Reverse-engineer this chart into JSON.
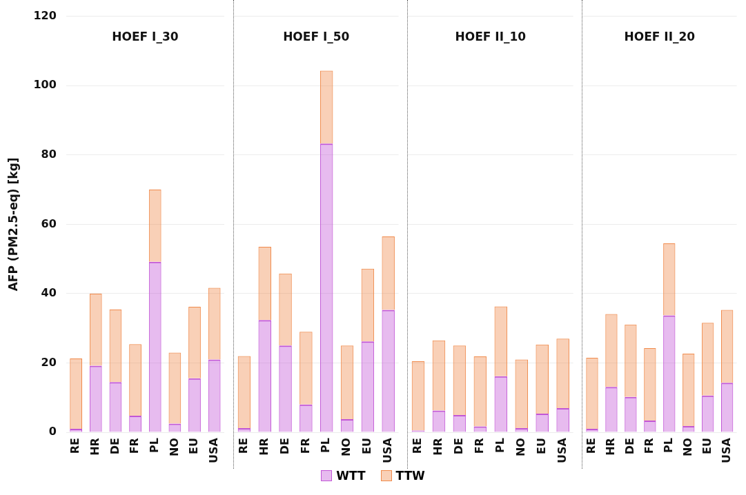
{
  "chart_data": [
    {
      "type": "bar",
      "title": "HOEF I_30",
      "ylabel": "AFP (PM2.5-eq) [kg]",
      "categories": [
        "RE",
        "HR",
        "DE",
        "FR",
        "PL",
        "NO",
        "EU",
        "USA"
      ],
      "stacked": true,
      "ylim": [
        0,
        120
      ],
      "yticks": [
        0,
        20,
        40,
        60,
        80,
        100,
        120
      ],
      "grid": "y",
      "legend": "bottom",
      "series": [
        {
          "name": "WTT",
          "color": "#c256d6",
          "values": [
            1,
            19.2,
            14.5,
            4.8,
            49.2,
            2.5,
            15.6,
            21
          ]
        },
        {
          "name": "TTW",
          "color": "#f08a4b",
          "values": [
            20.3,
            20.8,
            20.9,
            20.6,
            20.8,
            20.5,
            20.6,
            20.7
          ]
        }
      ]
    },
    {
      "type": "bar",
      "title": "HOEF I_50",
      "categories": [
        "RE",
        "HR",
        "DE",
        "FR",
        "PL",
        "NO",
        "EU",
        "USA"
      ],
      "stacked": true,
      "ylim": [
        0,
        120
      ],
      "yticks": [
        0,
        20,
        40,
        60,
        80,
        100,
        120
      ],
      "grid": "y",
      "tick_labels": "x",
      "series": [
        {
          "name": "WTT",
          "color": "#c256d6",
          "values": [
            1.2,
            32.4,
            25,
            8,
            83.3,
            3.8,
            26.2,
            35.3
          ]
        },
        {
          "name": "TTW",
          "color": "#f08a4b",
          "values": [
            20.8,
            21.1,
            20.8,
            21,
            21,
            21.2,
            21,
            21.2
          ]
        }
      ]
    },
    {
      "type": "bar",
      "title": "HOEF II_10",
      "categories": [
        "RE",
        "HR",
        "DE",
        "FR",
        "PL",
        "NO",
        "EU",
        "USA"
      ],
      "stacked": true,
      "ylim": [
        0,
        120
      ],
      "yticks": [
        0,
        20,
        40,
        60,
        80,
        100,
        120
      ],
      "grid": "y",
      "tick_labels": "x",
      "series": [
        {
          "name": "WTT",
          "color": "#c256d6",
          "values": [
            0.5,
            6.3,
            5,
            1.7,
            16.2,
            1.2,
            5.4,
            7
          ]
        },
        {
          "name": "TTW",
          "color": "#f08a4b",
          "values": [
            20,
            20.2,
            20,
            20.2,
            20.1,
            19.8,
            19.9,
            20
          ]
        }
      ]
    },
    {
      "type": "bar",
      "title": "HOEF II_20",
      "categories": [
        "RE",
        "HR",
        "DE",
        "FR",
        "PL",
        "NO",
        "EU",
        "USA"
      ],
      "stacked": true,
      "ylim": [
        0,
        120
      ],
      "yticks": [
        0,
        20,
        40,
        60,
        80,
        100,
        120
      ],
      "grid": "y",
      "tick_labels": "x",
      "series": [
        {
          "name": "WTT",
          "color": "#c256d6",
          "values": [
            1,
            13.1,
            10.2,
            3.4,
            33.7,
            1.8,
            10.6,
            14.3
          ]
        },
        {
          "name": "TTW",
          "color": "#f08a4b",
          "values": [
            20.5,
            21,
            20.9,
            20.9,
            20.8,
            20.9,
            21,
            21
          ]
        }
      ]
    }
  ]
}
